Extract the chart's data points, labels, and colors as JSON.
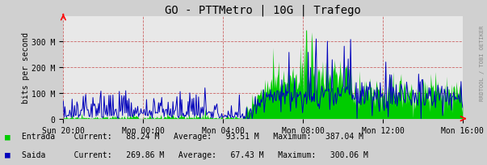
{
  "title": "GO - PTTMetro | 10G | Trafego",
  "ylabel": "bits per second",
  "bg_color": "#d0d0d0",
  "plot_bg_color": "#e8e8e8",
  "entrada_color": "#00cc00",
  "saida_color": "#0000bb",
  "x_tick_labels": [
    "Sun 20:00",
    "Mon 00:00",
    "Mon 04:00",
    "Mon 08:00",
    "Mon 12:00",
    "Mon 16:00"
  ],
  "y_tick_labels": [
    "0",
    "100 M",
    "200 M",
    "300 M"
  ],
  "yticks": [
    0,
    100000000,
    200000000,
    300000000
  ],
  "ylim": [
    0,
    400000000
  ],
  "legend_entrada": "Entrada",
  "legend_saida": "Saida",
  "legend_current_entrada": "88.24 M",
  "legend_avg_entrada": "93.51 M",
  "legend_max_entrada": "387.04 M",
  "legend_current_saida": "269.86 M",
  "legend_avg_saida": "67.43 M",
  "legend_max_saida": "300.06 M",
  "watermark": "RRDTOOL / TOBI OETIKER",
  "n_points": 500,
  "seed": 42
}
